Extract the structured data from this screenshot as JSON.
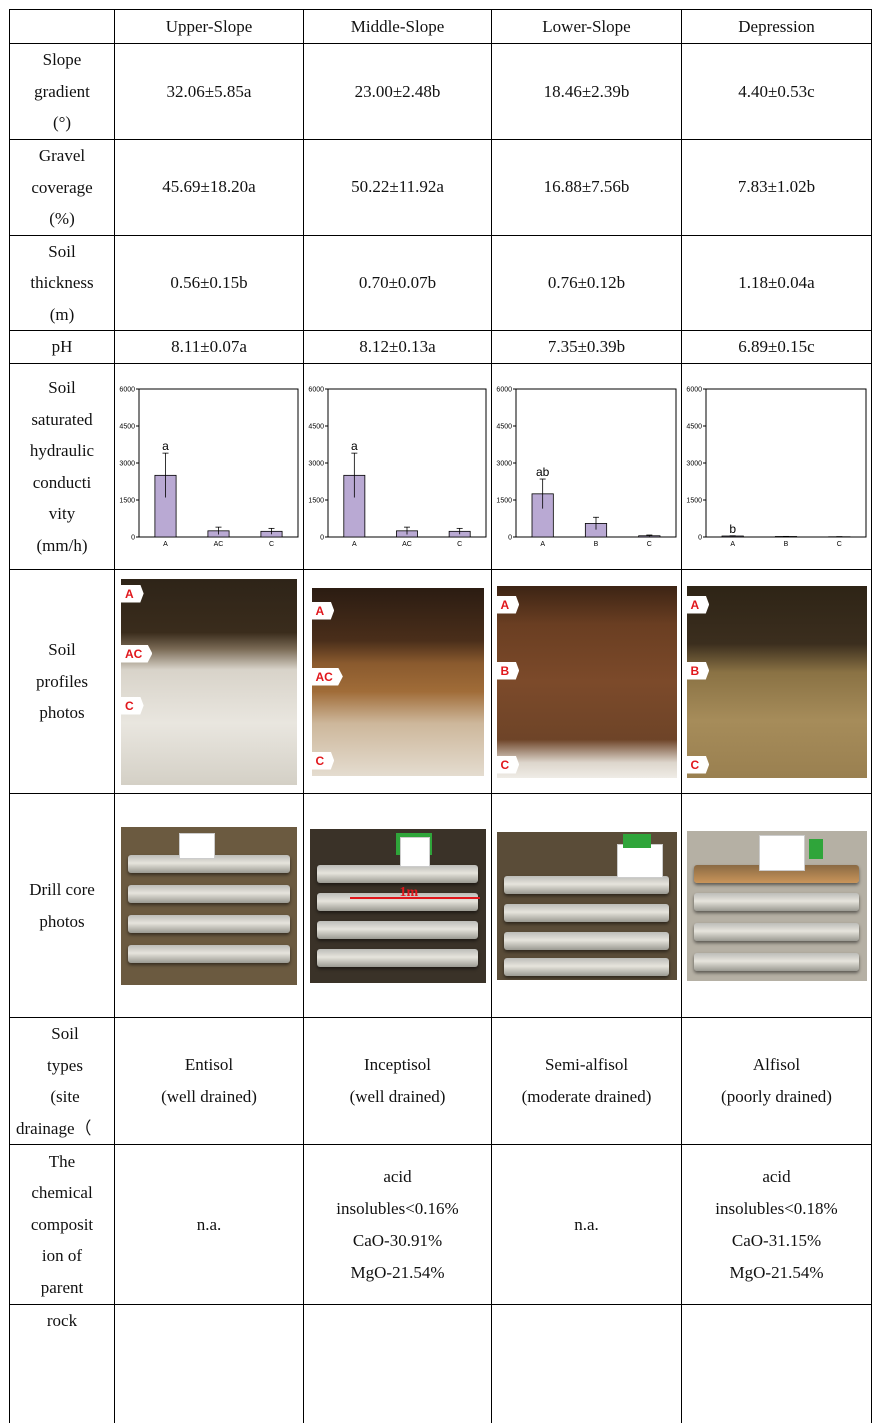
{
  "header": [
    "",
    "Upper-Slope",
    "Middle-Slope",
    "Lower-Slope",
    "Depression"
  ],
  "rows": {
    "slope": {
      "label": [
        "Slope",
        "gradient",
        "(°)"
      ],
      "values": [
        "32.06±5.85a",
        "23.00±2.48b",
        "18.46±2.39b",
        "4.40±0.53c"
      ]
    },
    "gravel": {
      "label": [
        "Gravel",
        "coverage",
        "(%)"
      ],
      "values": [
        "45.69±18.20a",
        "50.22±11.92a",
        "16.88±7.56b",
        "7.83±1.02b"
      ]
    },
    "thickness": {
      "label": [
        "Soil",
        "thickness",
        "(m)"
      ],
      "values": [
        "0.56±0.15b",
        "0.70±0.07b",
        "0.76±0.12b",
        "1.18±0.04a"
      ]
    },
    "ph": {
      "label": [
        "pH"
      ],
      "values": [
        "8.11±0.07a",
        "8.12±0.13a",
        "7.35±0.39b",
        "6.89±0.15c"
      ]
    },
    "ks": {
      "label": [
        "Soil",
        "saturated",
        "hydraulic",
        "conducti",
        "vity",
        "(mm/h)"
      ]
    },
    "profiles": {
      "label": [
        "Soil",
        "profiles",
        "photos"
      ]
    },
    "cores": {
      "label": [
        "Drill core",
        "photos"
      ],
      "scale_label": "1m"
    },
    "types": {
      "label": [
        "Soil",
        "types",
        "(site",
        "drainage（"
      ],
      "values": [
        [
          "Entisol",
          "(well drained)"
        ],
        [
          "Inceptisol",
          "(well drained)"
        ],
        [
          "Semi-alfisol",
          "(moderate drained)"
        ],
        [
          "Alfisol",
          "(poorly drained)"
        ]
      ]
    },
    "chem": {
      "label": [
        "The",
        "chemical",
        "composit",
        "ion of",
        "parent"
      ],
      "label_cont": "rock",
      "values": [
        [
          "n.a."
        ],
        [
          "acid",
          "insolubles<0.16%",
          "CaO-30.91%",
          "MgO-21.54%"
        ],
        [
          "n.a."
        ],
        [
          "acid",
          "insolubles<0.18%",
          "CaO-31.15%",
          "MgO-21.54%"
        ]
      ]
    }
  },
  "profile_tags": [
    [
      "A",
      "AC",
      "C"
    ],
    [
      "A",
      "AC",
      "C"
    ],
    [
      "A",
      "B",
      "C"
    ],
    [
      "A",
      "B",
      "C"
    ]
  ],
  "chart_data": [
    {
      "type": "bar",
      "categories": [
        "A",
        "AC",
        "C"
      ],
      "values": [
        2500,
        250,
        230
      ],
      "errors": [
        900,
        150,
        120
      ],
      "letters": [
        "a",
        "",
        ""
      ],
      "ylim": [
        0,
        6000
      ],
      "yticks": [
        0,
        1500,
        3000,
        4500,
        6000
      ],
      "color": "#b9a9d3"
    },
    {
      "type": "bar",
      "categories": [
        "A",
        "AC",
        "C"
      ],
      "values": [
        2500,
        250,
        230
      ],
      "errors": [
        900,
        150,
        120
      ],
      "letters": [
        "a",
        "",
        ""
      ],
      "ylim": [
        0,
        6000
      ],
      "yticks": [
        0,
        1500,
        3000,
        4500,
        6000
      ],
      "color": "#b9a9d3"
    },
    {
      "type": "bar",
      "categories": [
        "A",
        "B",
        "C"
      ],
      "values": [
        1750,
        550,
        50
      ],
      "errors": [
        600,
        250,
        30
      ],
      "letters": [
        "ab",
        "",
        ""
      ],
      "ylim": [
        0,
        6000
      ],
      "yticks": [
        0,
        1500,
        3000,
        4500,
        6000
      ],
      "color": "#b9a9d3"
    },
    {
      "type": "bar",
      "categories": [
        "A",
        "B",
        "C"
      ],
      "values": [
        40,
        20,
        10
      ],
      "errors": [
        10,
        5,
        5
      ],
      "letters": [
        "b",
        "",
        ""
      ],
      "ylim": [
        0,
        6000
      ],
      "yticks": [
        0,
        1500,
        3000,
        4500,
        6000
      ],
      "color": "#b9a9d3"
    }
  ]
}
